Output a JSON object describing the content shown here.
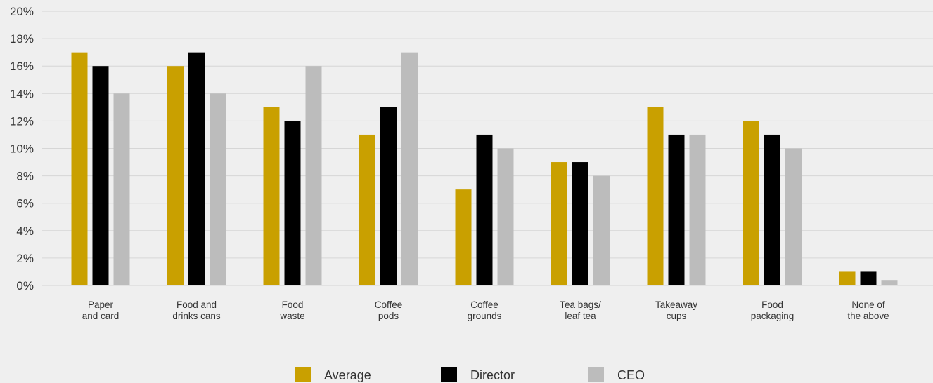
{
  "chart_data": {
    "type": "bar",
    "categories": [
      [
        "Paper",
        "and card"
      ],
      [
        "Food and",
        "drinks cans"
      ],
      [
        "Food",
        "waste"
      ],
      [
        "Coffee",
        "pods"
      ],
      [
        "Coffee",
        "grounds"
      ],
      [
        "Tea bags/",
        "leaf tea"
      ],
      [
        "Takeaway",
        "cups"
      ],
      [
        "Food",
        "packaging"
      ],
      [
        "None of",
        "the above"
      ]
    ],
    "series": [
      {
        "name": "Average",
        "color": "#c9a000",
        "values": [
          17,
          16,
          13,
          11,
          7,
          9,
          13,
          12,
          1
        ]
      },
      {
        "name": "Director",
        "color": "#000000",
        "values": [
          16,
          17,
          12,
          13,
          11,
          9,
          11,
          11,
          1
        ]
      },
      {
        "name": "CEO",
        "color": "#bcbcbc",
        "values": [
          14,
          14,
          16,
          17,
          10,
          8,
          11,
          10,
          0.4
        ]
      }
    ],
    "ylim": [
      0,
      20
    ],
    "yticks": [
      "0%",
      "2%",
      "4%",
      "6%",
      "8%",
      "10%",
      "12%",
      "14%",
      "16%",
      "18%",
      "20%"
    ],
    "grid": true,
    "legend_position": "bottom-center",
    "title": "",
    "xlabel": "",
    "ylabel": ""
  }
}
